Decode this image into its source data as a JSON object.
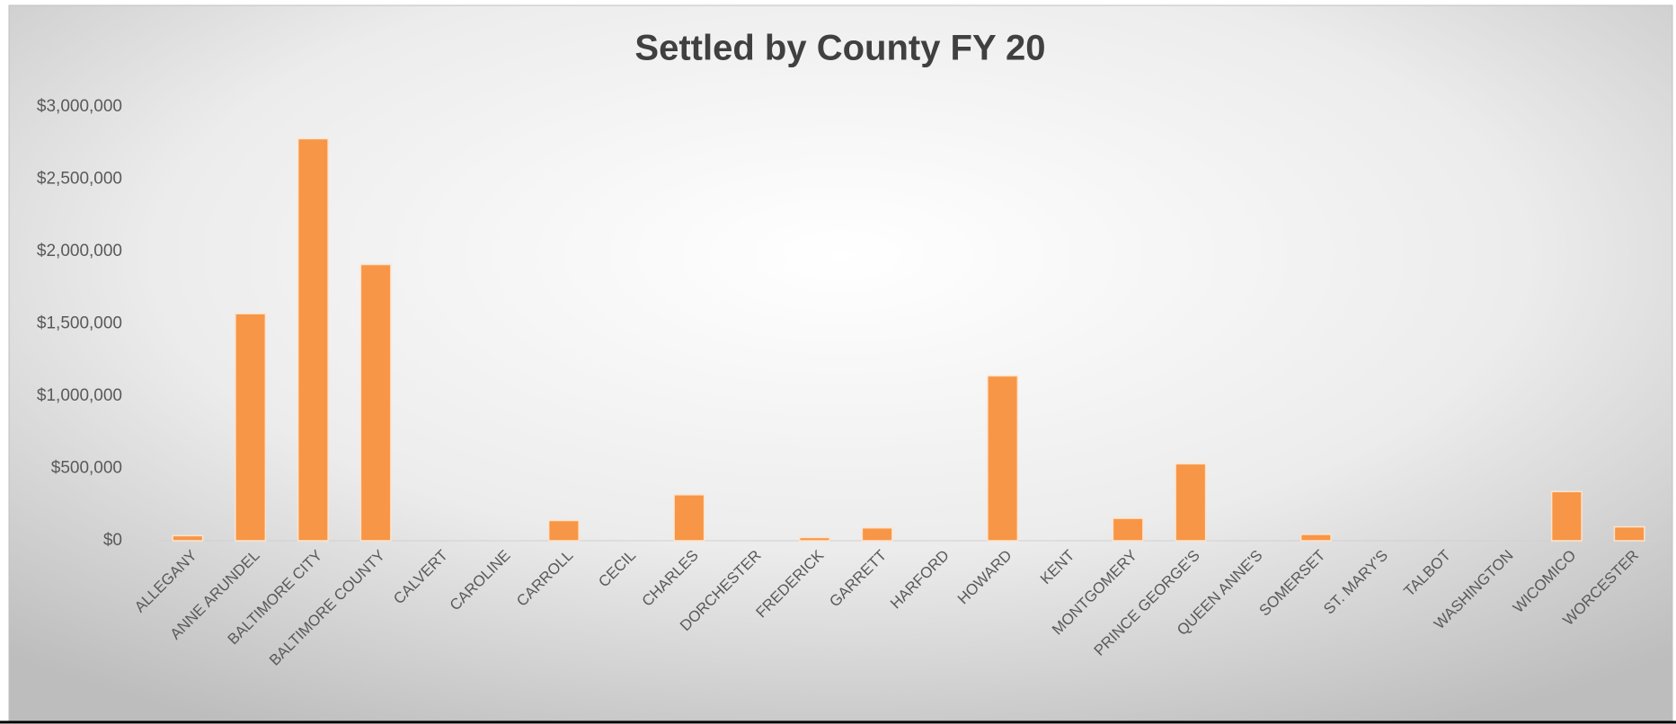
{
  "chart_data": {
    "type": "bar",
    "title": "Settled by County FY 20",
    "categories": [
      "ALLEGANY",
      "ANNE ARUNDEL",
      "BALTIMORE CITY",
      "BALTIMORE COUNTY",
      "CALVERT",
      "CAROLINE",
      "CARROLL",
      "CECIL",
      "CHARLES",
      "DORCHESTER",
      "FREDERICK",
      "GARRETT",
      "HARFORD",
      "HOWARD",
      "KENT",
      "MONTGOMERY",
      "PRINCE GEORGE'S",
      "QUEEN ANNE'S",
      "SOMERSET",
      "ST. MARY'S",
      "TALBOT",
      "WASHINGTON",
      "WICOMICO",
      "WORCESTER"
    ],
    "values": [
      35000,
      1570000,
      2780000,
      1910000,
      0,
      0,
      140000,
      0,
      318000,
      0,
      22000,
      89000,
      0,
      1140000,
      0,
      155000,
      532000,
      0,
      44000,
      0,
      0,
      0,
      340000,
      96000
    ],
    "color": "#f79646",
    "ylim": [
      0,
      3000000
    ],
    "yticks": [
      {
        "value": 0,
        "label": "$0"
      },
      {
        "value": 500000,
        "label": "$500,000"
      },
      {
        "value": 1000000,
        "label": "$1,000,000"
      },
      {
        "value": 1500000,
        "label": "$1,500,000"
      },
      {
        "value": 2000000,
        "label": "$2,000,000"
      },
      {
        "value": 2500000,
        "label": "$2,500,000"
      },
      {
        "value": 3000000,
        "label": "$3,000,000"
      }
    ],
    "grid": false
  }
}
